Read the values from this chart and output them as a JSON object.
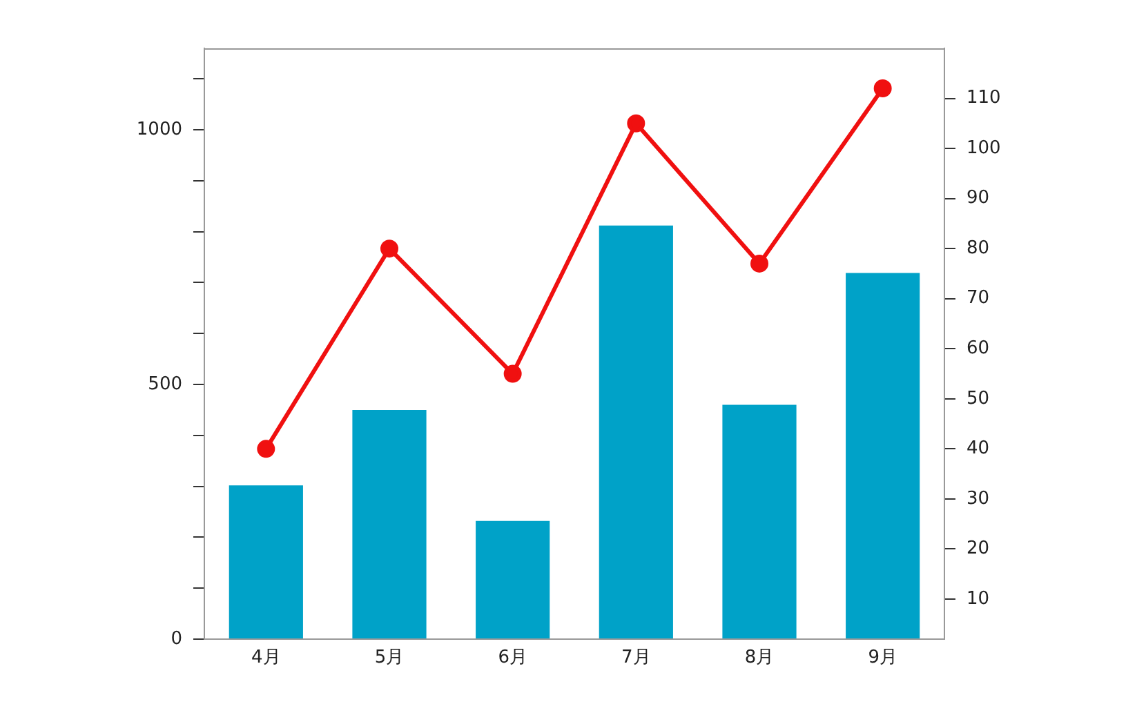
{
  "chart_data": {
    "type": "bar",
    "categories": [
      "4月",
      "5月",
      "6月",
      "7月",
      "8月",
      "9月"
    ],
    "series": [
      {
        "color": "#00a2c8",
        "values": [
          302,
          450,
          232,
          812,
          460,
          719
        ]
      },
      {
        "type": "line",
        "axis": "y2",
        "color": "#f01010",
        "values": [
          40,
          80,
          55,
          105,
          77,
          112
        ],
        "marker": "circle"
      }
    ],
    "ylim": [
      0,
      1160
    ],
    "yticks": [
      0,
      {
        "value": 100,
        "label": null
      },
      {
        "value": 200,
        "label": null
      },
      {
        "value": 300,
        "label": null
      },
      {
        "value": 400,
        "label": null
      },
      500,
      {
        "value": 600,
        "label": null
      },
      {
        "value": 700,
        "label": null
      },
      {
        "value": 800,
        "label": null
      },
      {
        "value": 900,
        "label": null
      },
      1000,
      {
        "value": 1100,
        "label": null
      }
    ],
    "y2lim": [
      2,
      120
    ],
    "y2ticks": [
      10,
      20,
      30,
      40,
      50,
      60,
      70,
      80,
      90,
      100,
      110
    ],
    "grid": false,
    "legend": false
  }
}
